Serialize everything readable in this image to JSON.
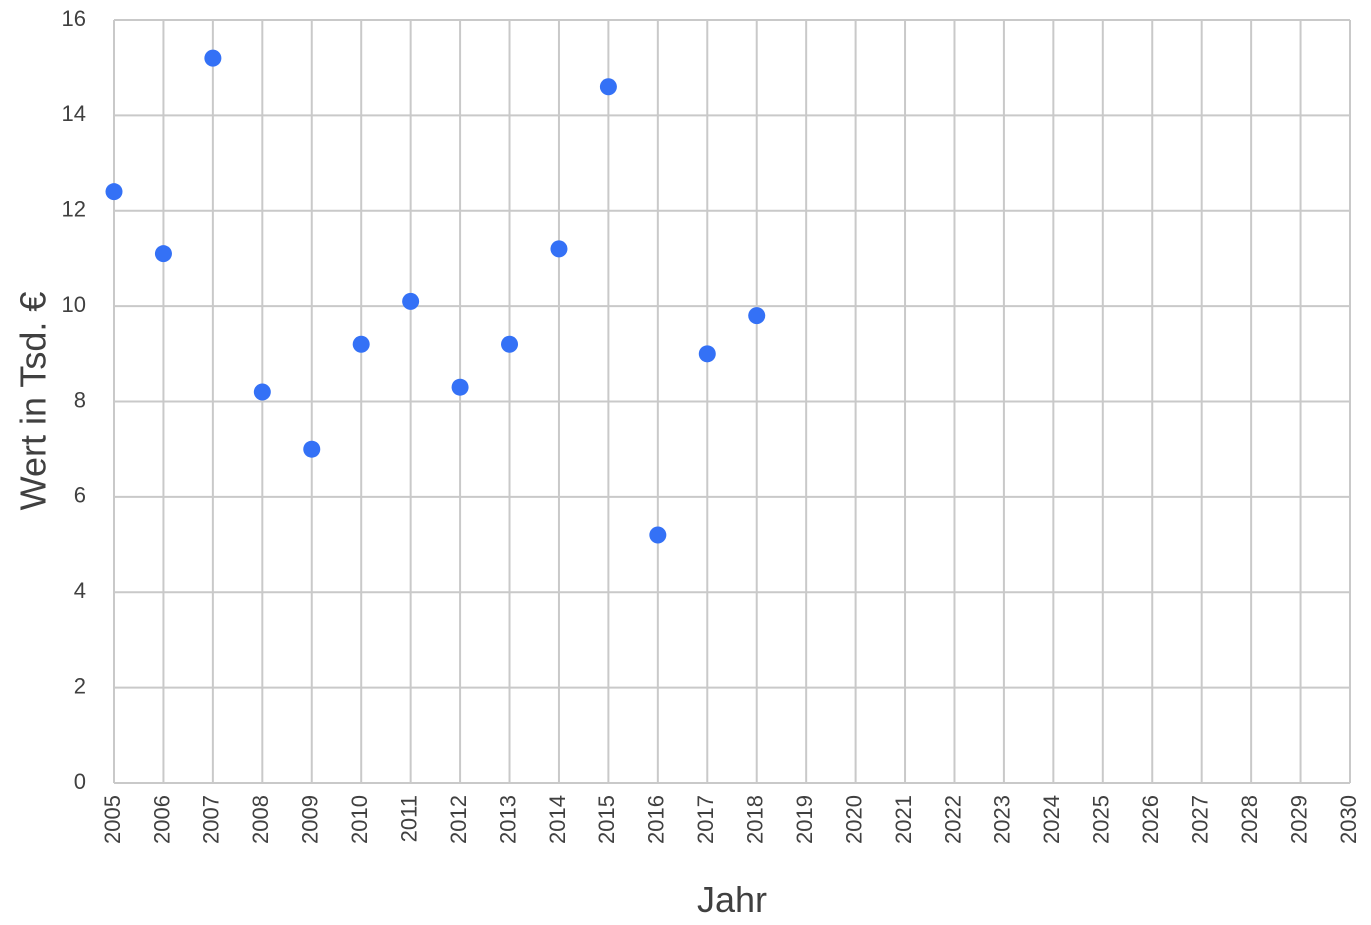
{
  "chart_data": {
    "type": "scatter",
    "x_label": "Jahr",
    "y_label": "Wert in Tsd. €",
    "x": [
      2005,
      2006,
      2007,
      2008,
      2009,
      2010,
      2011,
      2012,
      2013,
      2014,
      2015,
      2016,
      2017,
      2018
    ],
    "values": [
      12.4,
      11.1,
      15.2,
      8.2,
      7.0,
      9.2,
      10.1,
      8.3,
      9.2,
      11.2,
      14.6,
      5.2,
      9.0,
      9.8
    ],
    "color": "#3471f6",
    "xlim": [
      2005,
      2030
    ],
    "xticks": [
      2005,
      2006,
      2007,
      2008,
      2009,
      2010,
      2011,
      2012,
      2013,
      2014,
      2015,
      2016,
      2017,
      2018,
      2019,
      2020,
      2021,
      2022,
      2023,
      2024,
      2025,
      2026,
      2027,
      2028,
      2029,
      2030
    ],
    "ylim": [
      0,
      16
    ],
    "yticks": [
      0,
      2,
      4,
      6,
      8,
      10,
      12,
      14,
      16
    ],
    "grid": true
  }
}
